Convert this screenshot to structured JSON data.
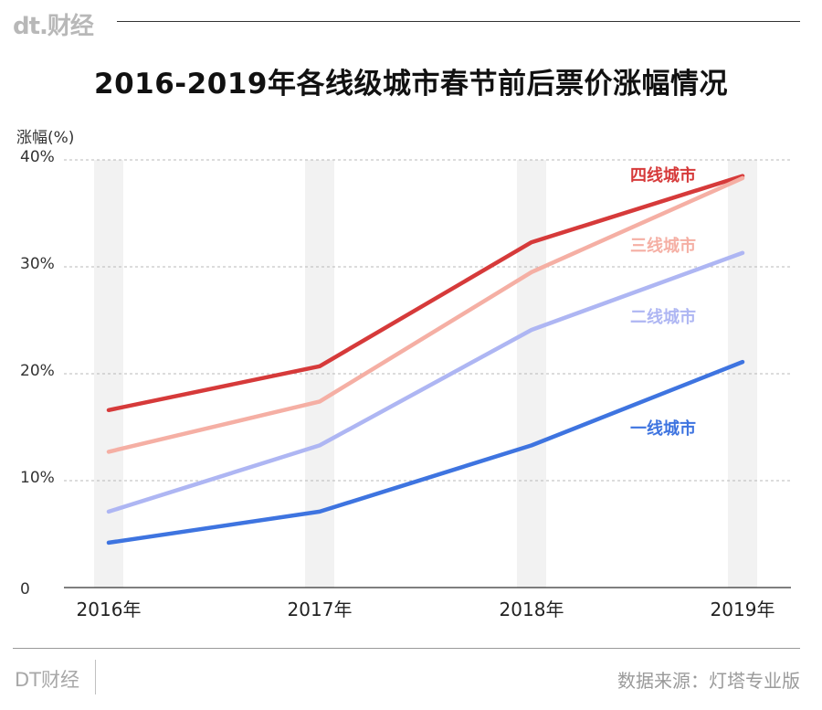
{
  "header": {
    "logo": "dt.财经"
  },
  "footer": {
    "brand": "DT财经",
    "source": "数据来源：灯塔专业版"
  },
  "colors": {
    "tier4": "#d63a3a",
    "tier3": "#f5afa4",
    "tier2": "#aeb6f3",
    "tier1": "#3e74e0",
    "band": "#f2f2f2",
    "grid": "#b8b8b8"
  },
  "chart_data": {
    "type": "line",
    "title": "2016-2019年各线级城市春节前后票价涨幅情况",
    "ylabel": "涨幅(%)",
    "xlabel": "",
    "categories": [
      "2016年",
      "2017年",
      "2018年",
      "2019年"
    ],
    "ylim": [
      0,
      40
    ],
    "yticks": [
      0,
      10,
      20,
      30,
      40
    ],
    "ytick_labels": [
      "0",
      "10%",
      "20%",
      "30%",
      "40%"
    ],
    "grid": true,
    "series": [
      {
        "name": "四线城市",
        "color_key": "tier4",
        "values": [
          16.6,
          20.7,
          32.3,
          38.5
        ]
      },
      {
        "name": "三线城市",
        "color_key": "tier3",
        "values": [
          12.7,
          17.4,
          29.5,
          38.3
        ]
      },
      {
        "name": "二线城市",
        "color_key": "tier2",
        "values": [
          7.1,
          13.3,
          24.1,
          31.3
        ]
      },
      {
        "name": "一线城市",
        "color_key": "tier1",
        "values": [
          4.2,
          7.1,
          13.3,
          21.1
        ]
      }
    ]
  }
}
